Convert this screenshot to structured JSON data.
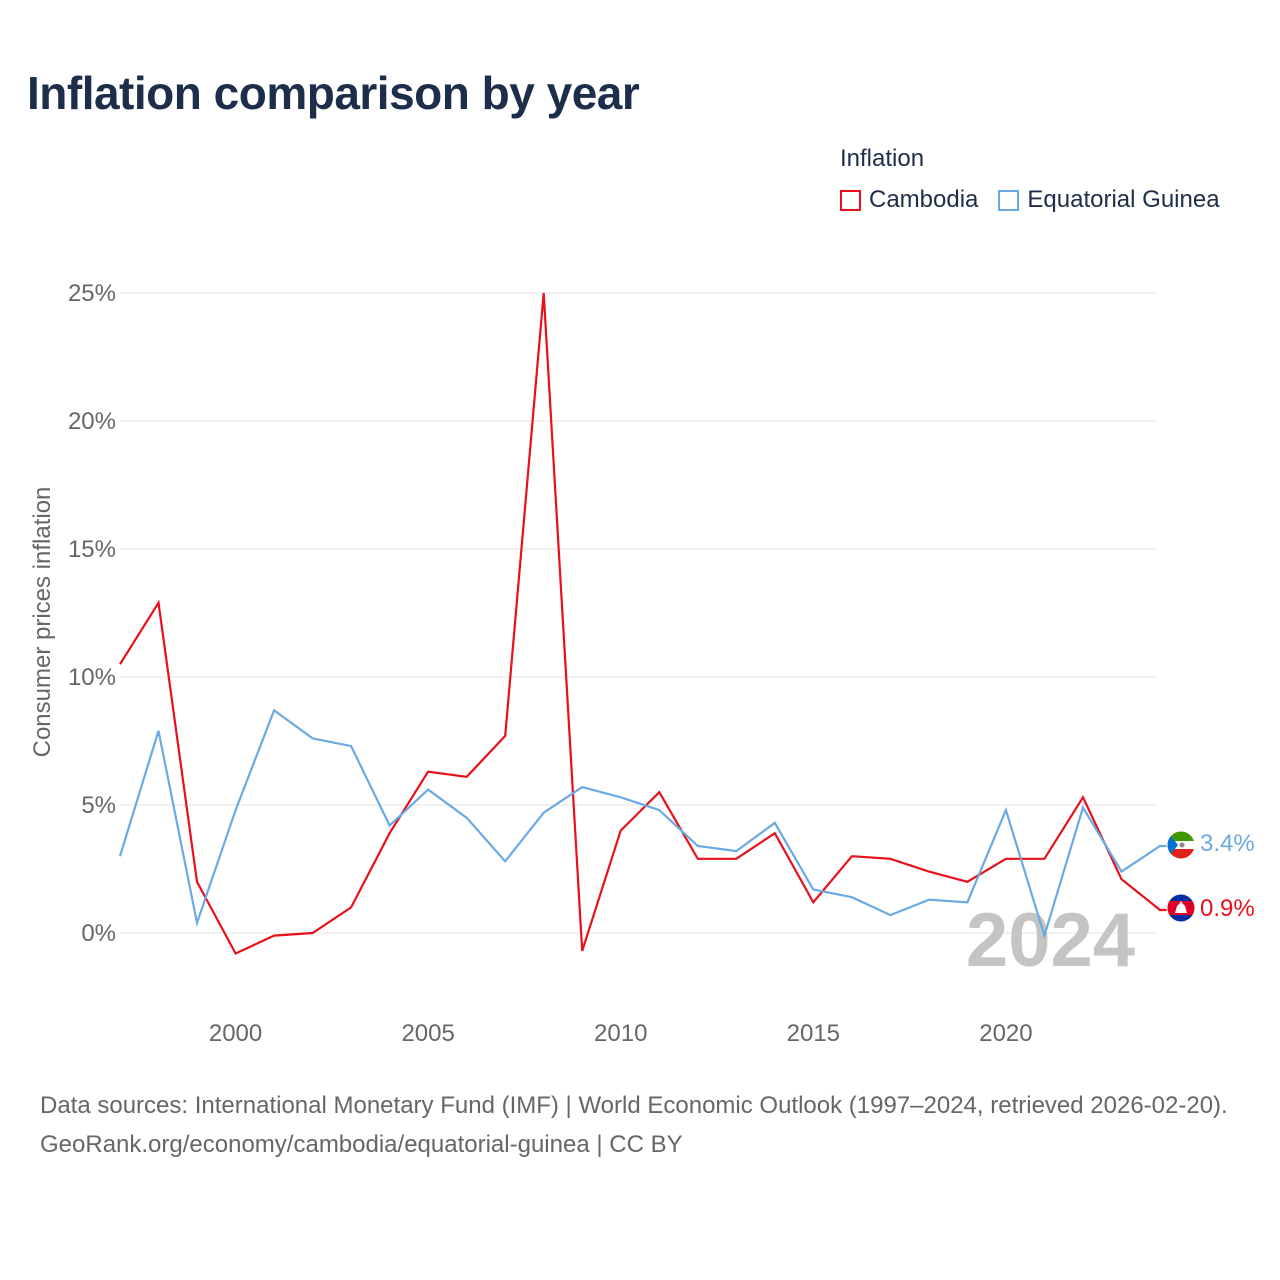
{
  "title": "Inflation comparison by year",
  "legend": {
    "title": "Inflation",
    "items": [
      {
        "label": "Cambodia",
        "color": "#e8101a"
      },
      {
        "label": "Equatorial Guinea",
        "color": "#6aaae4"
      }
    ]
  },
  "chart_data": {
    "type": "line",
    "title": "Inflation comparison by year",
    "xlabel": "",
    "ylabel": "Consumer prices inflation",
    "xlim": [
      1997,
      2024
    ],
    "ylim": [
      -3,
      25
    ],
    "x_ticks": [
      2000,
      2005,
      2010,
      2015,
      2020
    ],
    "y_ticks": [
      0,
      5,
      10,
      15,
      20,
      25
    ],
    "y_tick_labels": [
      "0%",
      "5%",
      "10%",
      "15%",
      "20%",
      "25%"
    ],
    "grid": true,
    "legend_position": "top-right",
    "year_watermark": "2024",
    "x": [
      1997,
      1998,
      1999,
      2000,
      2001,
      2002,
      2003,
      2004,
      2005,
      2006,
      2007,
      2008,
      2009,
      2010,
      2011,
      2012,
      2013,
      2014,
      2015,
      2016,
      2017,
      2018,
      2019,
      2020,
      2021,
      2022,
      2023,
      2024
    ],
    "series": [
      {
        "name": "Cambodia",
        "color": "#e8101a",
        "end_label": "0.9%",
        "flag": "cambodia-flag",
        "values": [
          10.5,
          12.9,
          2.0,
          -0.8,
          -0.1,
          0.0,
          1.0,
          3.9,
          6.3,
          6.1,
          7.7,
          25.0,
          -0.7,
          4.0,
          5.5,
          2.9,
          2.9,
          3.9,
          1.2,
          3.0,
          2.9,
          2.4,
          2.0,
          2.9,
          2.9,
          5.3,
          2.1,
          0.9
        ]
      },
      {
        "name": "Equatorial Guinea",
        "color": "#6aaae4",
        "end_label": "3.4%",
        "flag": "equatorial-guinea-flag",
        "values": [
          3.0,
          7.9,
          0.4,
          4.8,
          8.7,
          7.6,
          7.3,
          4.2,
          5.6,
          4.5,
          2.8,
          4.7,
          5.7,
          5.3,
          4.8,
          3.4,
          3.2,
          4.3,
          1.7,
          1.4,
          0.7,
          1.3,
          1.2,
          4.8,
          -0.1,
          4.9,
          2.4,
          3.4
        ]
      }
    ]
  },
  "footer": {
    "sources": "Data sources: International Monetary Fund (IMF) | World Economic Outlook (1997–2024, retrieved 2026-02-20).",
    "credit": "GeoRank.org/economy/cambodia/equatorial-guinea | CC BY"
  }
}
